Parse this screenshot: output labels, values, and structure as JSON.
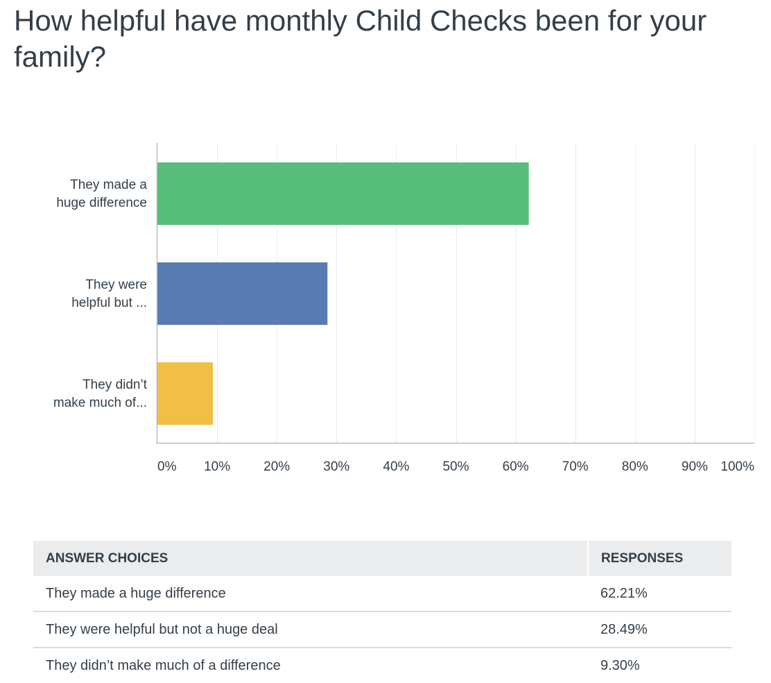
{
  "question": {
    "title": "How helpful have monthly Child Checks been for your family?"
  },
  "chart_data": {
    "type": "bar",
    "orientation": "horizontal",
    "categories": [
      [
        "They made a",
        "huge difference"
      ],
      [
        "They were",
        "helpful but ..."
      ],
      [
        "They didn’t",
        "make much of..."
      ]
    ],
    "values": [
      62.21,
      28.49,
      9.3
    ],
    "colors": [
      "#57bd7a",
      "#587bb3",
      "#f0bf43"
    ],
    "x_ticks": [
      "0%",
      "10%",
      "20%",
      "30%",
      "40%",
      "50%",
      "60%",
      "70%",
      "80%",
      "90%",
      "100%"
    ],
    "xlim": [
      0,
      100
    ],
    "grid": true
  },
  "table": {
    "headers": [
      "ANSWER CHOICES",
      "RESPONSES"
    ],
    "rows": [
      {
        "choice": "They made a huge difference",
        "response": "62.21%"
      },
      {
        "choice": "They were helpful but not a huge deal",
        "response": "28.49%"
      },
      {
        "choice": "They didn’t make much of a difference",
        "response": "9.30%"
      }
    ]
  }
}
